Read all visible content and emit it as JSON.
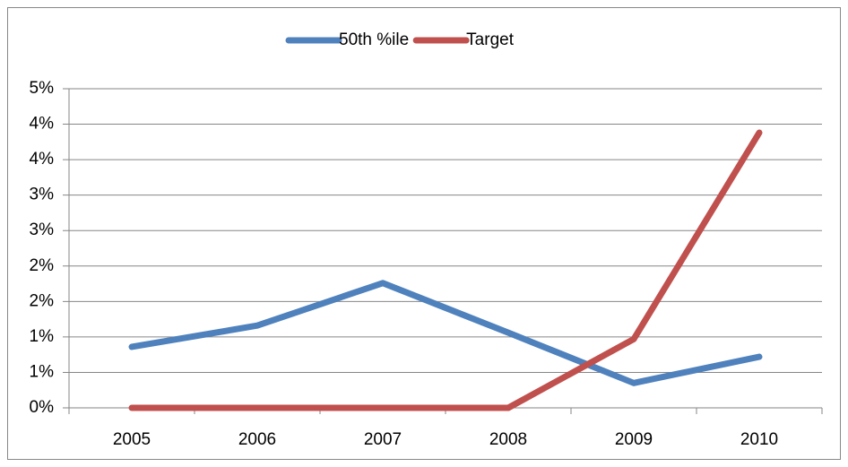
{
  "chart_data": {
    "type": "line",
    "categories": [
      "2005",
      "2006",
      "2007",
      "2008",
      "2009",
      "2010"
    ],
    "series": [
      {
        "name": "50th %ile",
        "color": "#4f81bd",
        "values": [
          0.86,
          1.16,
          1.76,
          1.06,
          0.35,
          0.72
        ]
      },
      {
        "name": "Target",
        "color": "#c0504d",
        "values": [
          0,
          0,
          0,
          0,
          0.97,
          3.88
        ]
      }
    ],
    "ylim": [
      0,
      4.5
    ],
    "yticks": [
      {
        "value": 0,
        "label": "0%"
      },
      {
        "value": 0.5,
        "label": "1%"
      },
      {
        "value": 1,
        "label": "1%"
      },
      {
        "value": 1.5,
        "label": "2%"
      },
      {
        "value": 2,
        "label": "2%"
      },
      {
        "value": 2.5,
        "label": "3%"
      },
      {
        "value": 3,
        "label": "3%"
      },
      {
        "value": 3.5,
        "label": "4%"
      },
      {
        "value": 4,
        "label": "4%"
      },
      {
        "value": 4.5,
        "label": "5%"
      }
    ],
    "grid": true,
    "legend": "top"
  }
}
